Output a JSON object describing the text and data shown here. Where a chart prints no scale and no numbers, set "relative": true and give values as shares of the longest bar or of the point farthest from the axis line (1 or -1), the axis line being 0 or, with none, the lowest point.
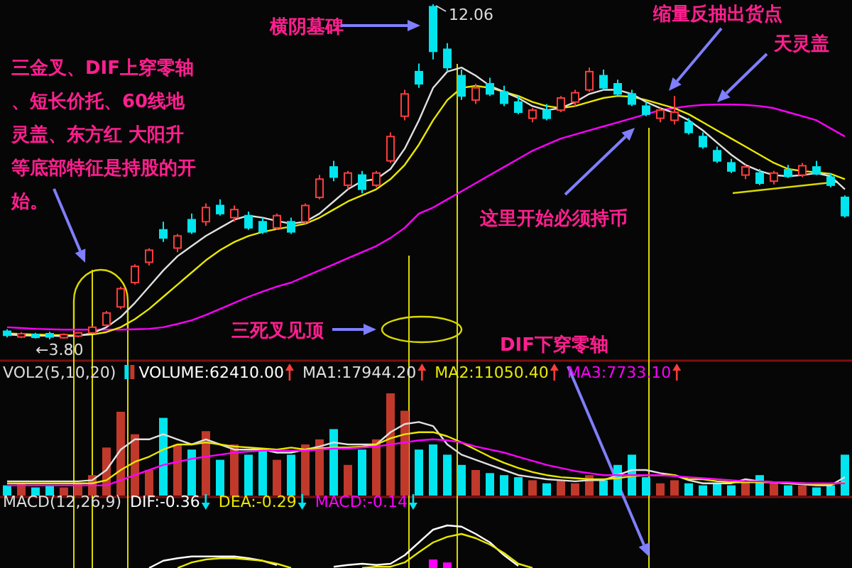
{
  "chart_data": [
    {
      "type": "candlestick",
      "categories": [
        null,
        null,
        null,
        null,
        null,
        null,
        null,
        null,
        null,
        null,
        null,
        null,
        null,
        null,
        null,
        null,
        null,
        null,
        null,
        null,
        null,
        null,
        null,
        null,
        null,
        null,
        null,
        null,
        null,
        null,
        null,
        null,
        null,
        null,
        null,
        null,
        null,
        null,
        null,
        null,
        null,
        null,
        null,
        null,
        null,
        null,
        null,
        null,
        null,
        null,
        null,
        null,
        null,
        null,
        null,
        null,
        null,
        null,
        null,
        null
      ],
      "ohlc": [
        [
          4.0,
          4.05,
          3.85,
          3.9
        ],
        [
          3.86,
          3.98,
          3.83,
          3.94
        ],
        [
          3.92,
          3.96,
          3.82,
          3.85
        ],
        [
          3.94,
          3.99,
          3.8,
          3.86
        ],
        [
          3.84,
          3.95,
          3.82,
          3.92
        ],
        [
          3.88,
          3.98,
          3.85,
          3.96
        ],
        [
          3.96,
          4.12,
          3.94,
          4.1
        ],
        [
          4.15,
          4.5,
          4.12,
          4.45
        ],
        [
          4.6,
          5.1,
          4.55,
          5.05
        ],
        [
          5.2,
          5.65,
          5.15,
          5.6
        ],
        [
          5.7,
          6.05,
          5.62,
          6.0
        ],
        [
          6.5,
          6.7,
          6.2,
          6.3
        ],
        [
          6.05,
          6.4,
          5.95,
          6.35
        ],
        [
          6.75,
          6.9,
          6.4,
          6.45
        ],
        [
          6.7,
          7.15,
          6.6,
          7.05
        ],
        [
          7.1,
          7.25,
          6.85,
          6.9
        ],
        [
          6.8,
          7.1,
          6.7,
          7.0
        ],
        [
          6.85,
          6.95,
          6.5,
          6.55
        ],
        [
          6.7,
          6.8,
          6.4,
          6.45
        ],
        [
          6.55,
          6.9,
          6.5,
          6.85
        ],
        [
          6.7,
          6.8,
          6.4,
          6.45
        ],
        [
          6.7,
          7.15,
          6.65,
          7.1
        ],
        [
          7.3,
          7.85,
          7.25,
          7.75
        ],
        [
          8.05,
          8.2,
          7.7,
          7.8
        ],
        [
          7.6,
          7.95,
          7.5,
          7.9
        ],
        [
          7.85,
          7.95,
          7.4,
          7.5
        ],
        [
          7.6,
          7.95,
          7.55,
          7.9
        ],
        [
          8.2,
          8.9,
          8.15,
          8.8
        ],
        [
          9.3,
          9.95,
          9.2,
          9.85
        ],
        [
          10.4,
          10.6,
          10.0,
          10.1
        ],
        [
          12.0,
          12.06,
          10.7,
          10.9
        ],
        [
          10.95,
          11.1,
          10.4,
          10.5
        ],
        [
          10.3,
          10.45,
          9.7,
          9.8
        ],
        [
          9.7,
          10.1,
          9.6,
          10.0
        ],
        [
          10.1,
          10.25,
          9.8,
          9.85
        ],
        [
          9.9,
          10.05,
          9.55,
          9.62
        ],
        [
          9.65,
          9.8,
          9.35,
          9.4
        ],
        [
          9.25,
          9.5,
          9.15,
          9.45
        ],
        [
          9.45,
          9.6,
          9.2,
          9.25
        ],
        [
          9.45,
          9.8,
          9.4,
          9.75
        ],
        [
          9.65,
          9.95,
          9.55,
          9.88
        ],
        [
          9.95,
          10.5,
          9.9,
          10.4
        ],
        [
          10.3,
          10.45,
          9.95,
          10.0
        ],
        [
          10.1,
          10.2,
          9.8,
          9.85
        ],
        [
          9.85,
          9.95,
          9.55,
          9.6
        ],
        [
          9.55,
          9.65,
          9.3,
          9.35
        ],
        [
          9.25,
          9.5,
          9.15,
          9.45
        ],
        [
          9.2,
          9.8,
          9.1,
          9.4
        ],
        [
          9.15,
          9.25,
          8.85,
          8.9
        ],
        [
          8.8,
          8.9,
          8.5,
          8.55
        ],
        [
          8.45,
          8.55,
          8.15,
          8.2
        ],
        [
          8.15,
          8.25,
          7.9,
          7.95
        ],
        [
          7.85,
          8.1,
          7.75,
          8.05
        ],
        [
          7.9,
          8.0,
          7.6,
          7.65
        ],
        [
          7.7,
          7.95,
          7.62,
          7.9
        ],
        [
          7.98,
          8.1,
          7.78,
          7.82
        ],
        [
          7.85,
          8.15,
          7.8,
          8.08
        ],
        [
          8.05,
          8.2,
          7.85,
          7.88
        ],
        [
          7.8,
          7.9,
          7.55,
          7.6
        ],
        [
          7.3,
          7.35,
          6.8,
          6.85
        ]
      ],
      "series": [
        {
          "type": "line",
          "color": "#ff00ff",
          "values": [
            4.1,
            4.08,
            4.06,
            4.05,
            4.04,
            4.04,
            4.04,
            4.04,
            4.04,
            4.05,
            4.06,
            4.1,
            4.18,
            4.27,
            4.4,
            4.55,
            4.7,
            4.85,
            4.98,
            5.1,
            5.2,
            5.35,
            5.5,
            5.65,
            5.8,
            5.95,
            6.1,
            6.3,
            6.55,
            6.9,
            7.05,
            7.25,
            7.45,
            7.65,
            7.85,
            8.05,
            8.25,
            8.45,
            8.6,
            8.75,
            8.85,
            8.95,
            9.05,
            9.15,
            9.25,
            9.35,
            9.45,
            9.5,
            9.55,
            9.58,
            9.59,
            9.59,
            9.58,
            9.55,
            9.5,
            9.4,
            9.3,
            9.2,
            9.0,
            8.8
          ]
        },
        {
          "type": "line",
          "color": "#e8e800",
          "values": [
            3.95,
            3.93,
            3.92,
            3.91,
            3.9,
            3.9,
            3.92,
            3.98,
            4.1,
            4.3,
            4.55,
            4.85,
            5.15,
            5.45,
            5.75,
            6.0,
            6.2,
            6.35,
            6.45,
            6.52,
            6.58,
            6.65,
            6.8,
            7.0,
            7.2,
            7.35,
            7.5,
            7.75,
            8.1,
            8.6,
            9.2,
            9.7,
            10.0,
            10.05,
            10.0,
            9.9,
            9.8,
            9.65,
            9.55,
            9.5,
            9.55,
            9.65,
            9.75,
            9.8,
            9.78,
            9.7,
            9.6,
            9.5,
            9.35,
            9.15,
            8.95,
            8.75,
            8.55,
            8.35,
            8.15,
            8.0,
            7.95,
            7.92,
            7.88,
            7.75
          ]
        },
        {
          "type": "line",
          "color": "#e0e0e0",
          "values": [
            3.92,
            3.9,
            3.89,
            3.89,
            3.88,
            3.89,
            3.95,
            4.1,
            4.35,
            4.7,
            5.1,
            5.5,
            5.85,
            6.1,
            6.35,
            6.55,
            6.75,
            6.85,
            6.8,
            6.72,
            6.65,
            6.7,
            6.9,
            7.2,
            7.5,
            7.7,
            7.75,
            8.0,
            8.5,
            9.2,
            10.0,
            10.4,
            10.5,
            10.3,
            10.05,
            9.9,
            9.75,
            9.55,
            9.45,
            9.5,
            9.65,
            9.85,
            9.95,
            9.95,
            9.85,
            9.65,
            9.5,
            9.38,
            9.2,
            8.95,
            8.65,
            8.35,
            8.1,
            7.95,
            7.85,
            7.82,
            7.85,
            7.9,
            7.82,
            7.5
          ]
        }
      ],
      "annotations": [
        "三金叉、DIF上穿零轴、短长价托、60线地灵盖、东方红 大阳升等底部特征是持股的开始。",
        "横阴墓碑",
        "缩量反抽出货点",
        "天灵盖",
        "这里开始必须持币",
        "三死叉见顶",
        "DIF下穿零轴",
        "12.06",
        "←3.80"
      ]
    },
    {
      "type": "bar",
      "relative": true,
      "title": "VOL2(5,10,20)",
      "legend": "top left",
      "categories": [
        null,
        null,
        null,
        null,
        null,
        null,
        null,
        null,
        null,
        null,
        null,
        null,
        null,
        null,
        null,
        null,
        null,
        null,
        null,
        null,
        null,
        null,
        null,
        null,
        null,
        null,
        null,
        null,
        null,
        null,
        null,
        null,
        null,
        null,
        null,
        null,
        null,
        null,
        null,
        null,
        null,
        null,
        null,
        null,
        null,
        null,
        null,
        null,
        null,
        null,
        null,
        null,
        null,
        null,
        null,
        null,
        null,
        null,
        null,
        null
      ],
      "series": [
        {
          "name": "VOLUME:62410.00",
          "color": "#ffffff",
          "colors": [
            "#00e5ee",
            "#c0392b",
            "#00e5ee",
            "#00e5ee",
            "#c0392b",
            "#c0392b",
            "#c0392b",
            "#c0392b",
            "#c0392b",
            "#c0392b",
            "#c0392b",
            "#00e5ee",
            "#c0392b",
            "#00e5ee",
            "#c0392b",
            "#00e5ee",
            "#c0392b",
            "#00e5ee",
            "#00e5ee",
            "#c0392b",
            "#00e5ee",
            "#c0392b",
            "#c0392b",
            "#00e5ee",
            "#c0392b",
            "#00e5ee",
            "#c0392b",
            "#c0392b",
            "#c0392b",
            "#00e5ee",
            "#00e5ee",
            "#00e5ee",
            "#00e5ee",
            "#c0392b",
            "#00e5ee",
            "#00e5ee",
            "#00e5ee",
            "#c0392b",
            "#00e5ee",
            "#c0392b",
            "#c0392b",
            "#c0392b",
            "#00e5ee",
            "#00e5ee",
            "#00e5ee",
            "#00e5ee",
            "#c0392b",
            "#c0392b",
            "#00e5ee",
            "#00e5ee",
            "#00e5ee",
            "#00e5ee",
            "#c0392b",
            "#00e5ee",
            "#c0392b",
            "#00e5ee",
            "#c0392b",
            "#00e5ee",
            "#00e5ee",
            "#00e5ee"
          ],
          "values": [
            0.1,
            0.12,
            0.08,
            0.1,
            0.08,
            0.12,
            0.2,
            0.47,
            0.82,
            0.6,
            0.25,
            0.76,
            0.5,
            0.45,
            0.63,
            0.35,
            0.5,
            0.4,
            0.45,
            0.35,
            0.4,
            0.5,
            0.55,
            0.65,
            0.3,
            0.45,
            0.55,
            1.0,
            0.83,
            0.45,
            0.5,
            0.4,
            0.3,
            0.25,
            0.22,
            0.2,
            0.18,
            0.15,
            0.12,
            0.15,
            0.12,
            0.2,
            0.15,
            0.3,
            0.4,
            0.18,
            0.12,
            0.15,
            0.12,
            0.1,
            0.12,
            0.1,
            0.15,
            0.2,
            0.12,
            0.1,
            0.1,
            0.08,
            0.1,
            0.4
          ]
        },
        {
          "name": "MA1:17944.20",
          "type": "line",
          "color": "#e0e0e0",
          "values": [
            0.14,
            0.14,
            0.14,
            0.14,
            0.14,
            0.14,
            0.15,
            0.25,
            0.45,
            0.55,
            0.55,
            0.6,
            0.55,
            0.5,
            0.55,
            0.5,
            0.45,
            0.45,
            0.45,
            0.42,
            0.42,
            0.45,
            0.48,
            0.52,
            0.5,
            0.5,
            0.5,
            0.62,
            0.7,
            0.72,
            0.68,
            0.5,
            0.4,
            0.35,
            0.3,
            0.25,
            0.2,
            0.18,
            0.16,
            0.15,
            0.14,
            0.15,
            0.15,
            0.2,
            0.25,
            0.25,
            0.22,
            0.2,
            0.15,
            0.12,
            0.12,
            0.12,
            0.16,
            0.14,
            0.13,
            0.12,
            0.11,
            0.1,
            0.1,
            0.18
          ]
        },
        {
          "name": "MA2:11050.40",
          "type": "line",
          "color": "#e8e800",
          "values": [
            0.12,
            0.12,
            0.12,
            0.12,
            0.12,
            0.12,
            0.12,
            0.15,
            0.25,
            0.33,
            0.38,
            0.45,
            0.5,
            0.5,
            0.52,
            0.5,
            0.48,
            0.47,
            0.46,
            0.45,
            0.47,
            0.45,
            0.46,
            0.47,
            0.47,
            0.48,
            0.5,
            0.56,
            0.6,
            0.62,
            0.62,
            0.58,
            0.52,
            0.45,
            0.38,
            0.32,
            0.27,
            0.23,
            0.2,
            0.18,
            0.17,
            0.16,
            0.16,
            0.17,
            0.19,
            0.2,
            0.2,
            0.2,
            0.16,
            0.16,
            0.14,
            0.13,
            0.13,
            0.13,
            0.13,
            0.12,
            0.12,
            0.11,
            0.11,
            0.13
          ]
        },
        {
          "name": "MA3:7733.10",
          "type": "line",
          "color": "#ff00ff",
          "values": [
            0.1,
            0.1,
            0.1,
            0.1,
            0.1,
            0.1,
            0.1,
            0.1,
            0.15,
            0.2,
            0.25,
            0.3,
            0.33,
            0.36,
            0.38,
            0.4,
            0.42,
            0.43,
            0.44,
            0.44,
            0.44,
            0.44,
            0.45,
            0.46,
            0.46,
            0.47,
            0.48,
            0.5,
            0.52,
            0.54,
            0.55,
            0.54,
            0.52,
            0.48,
            0.45,
            0.42,
            0.38,
            0.34,
            0.3,
            0.27,
            0.24,
            0.22,
            0.2,
            0.2,
            0.2,
            0.2,
            0.2,
            0.19,
            0.18,
            0.17,
            0.16,
            0.15,
            0.14,
            0.14,
            0.13,
            0.13,
            0.12,
            0.12,
            0.12,
            0.12
          ]
        }
      ]
    },
    {
      "type": "line",
      "relative": true,
      "title": "MACD(12,26,9)",
      "legend": "top left",
      "categories": [
        null,
        null,
        null,
        null,
        null,
        null,
        null,
        null,
        null,
        null,
        null,
        null,
        null,
        null,
        null,
        null,
        null,
        null,
        null,
        null,
        null,
        null,
        null,
        null,
        null,
        null,
        null,
        null,
        null,
        null,
        null,
        null,
        null,
        null,
        null,
        null,
        null,
        null,
        null,
        null,
        null,
        null,
        null,
        null,
        null,
        null,
        null,
        null,
        null,
        null,
        null,
        null,
        null,
        null,
        null,
        null,
        null,
        null,
        null,
        null
      ],
      "series": [
        {
          "name": "DIF:-0.36",
          "color": "#ffffff",
          "values": [
            null,
            null,
            null,
            null,
            null,
            null,
            null,
            null,
            null,
            null,
            0.0,
            0.17,
            0.23,
            0.27,
            0.27,
            0.27,
            0.27,
            0.23,
            0.17,
            0.07,
            null,
            null,
            null,
            0.03,
            0.07,
            0.1,
            0.07,
            0.1,
            0.3,
            0.6,
            0.9,
            1.0,
            0.97,
            0.8,
            0.6,
            0.3,
            0.05,
            null,
            null,
            null,
            null,
            null,
            null,
            null,
            null,
            null,
            null,
            null,
            null,
            null,
            null,
            null,
            null,
            null,
            null,
            null,
            null,
            null,
            null,
            null
          ]
        },
        {
          "name": "DEA:-0.29",
          "color": "#e8e800",
          "values": [
            null,
            null,
            null,
            null,
            null,
            null,
            null,
            null,
            null,
            null,
            null,
            null,
            0.0,
            0.13,
            0.2,
            0.23,
            0.23,
            0.2,
            0.17,
            0.1,
            0.0,
            null,
            null,
            null,
            null,
            0.0,
            0.03,
            0.03,
            0.13,
            0.37,
            0.6,
            0.73,
            0.8,
            0.7,
            0.55,
            0.35,
            0.1,
            0.0,
            null,
            null,
            null,
            null,
            null,
            null,
            null,
            null,
            null,
            null,
            null,
            null,
            null,
            null,
            null,
            null,
            null,
            null,
            null,
            null,
            null,
            null
          ]
        },
        {
          "name": "MACD:-0.14",
          "type": "bar",
          "color": "#ff00ff",
          "values": [
            null,
            null,
            null,
            null,
            null,
            null,
            null,
            null,
            null,
            null,
            null,
            null,
            null,
            null,
            null,
            null,
            null,
            null,
            null,
            null,
            null,
            null,
            null,
            null,
            null,
            null,
            null,
            null,
            null,
            null,
            0.2,
            0.13,
            null,
            null,
            null,
            null,
            null,
            null,
            null,
            null,
            null,
            null,
            null,
            null,
            null,
            null,
            null,
            null,
            null,
            null,
            null,
            null,
            null,
            null,
            null,
            null,
            null,
            null,
            null,
            null
          ]
        }
      ]
    }
  ]
}
